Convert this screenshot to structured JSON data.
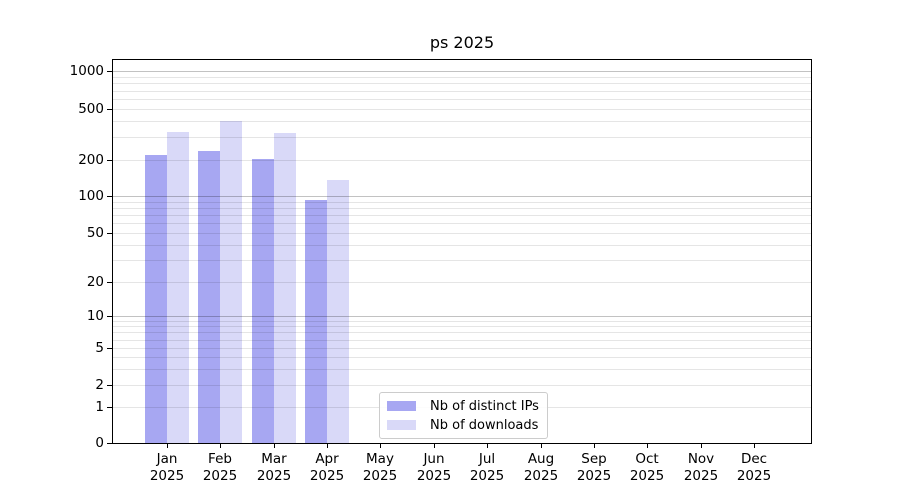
{
  "figure": {
    "background": "#ffffff"
  },
  "chart_data": {
    "type": "bar",
    "title": "ps 2025",
    "x_axis": {
      "months": [
        "Jan",
        "Feb",
        "Mar",
        "Apr",
        "May",
        "Jun",
        "Jul",
        "Aug",
        "Sep",
        "Oct",
        "Nov",
        "Dec"
      ],
      "year": "2025"
    },
    "y_axis": {
      "scale": "symlog",
      "ticks": [
        0,
        1,
        2,
        5,
        10,
        20,
        50,
        100,
        200,
        500,
        1000
      ],
      "range": [
        0,
        1200
      ],
      "grid": true,
      "major_grid_values": [
        10,
        100,
        1000
      ],
      "minor_grid_values": [
        1,
        2,
        3,
        4,
        5,
        6,
        7,
        8,
        9,
        20,
        30,
        40,
        50,
        60,
        70,
        80,
        90,
        200,
        300,
        400,
        500,
        600,
        700,
        800,
        900
      ]
    },
    "series": [
      {
        "name": "Nb of distinct IPs",
        "color": "#a7a7f2",
        "values": [
          220,
          235,
          205,
          93,
          null,
          null,
          null,
          null,
          null,
          null,
          null,
          null
        ]
      },
      {
        "name": "Nb of downloads",
        "color": "#d9d9f8",
        "values": [
          330,
          400,
          325,
          136,
          null,
          null,
          null,
          null,
          null,
          null,
          null,
          null
        ]
      }
    ],
    "legend": {
      "labels": [
        "Nb of distinct IPs",
        "Nb of downloads"
      ],
      "position": "lower-center"
    }
  }
}
